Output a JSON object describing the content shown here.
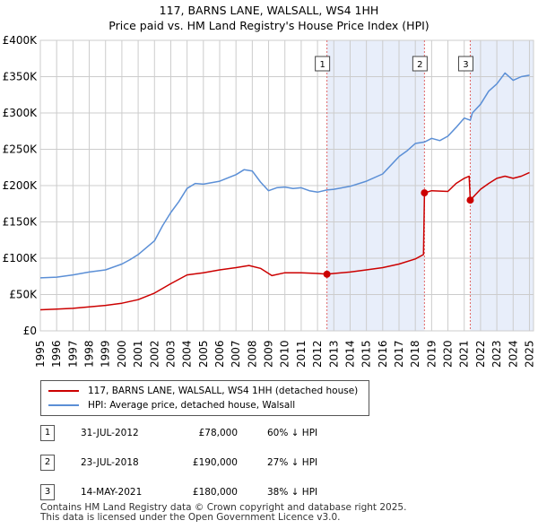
{
  "title": {
    "line1": "117, BARNS LANE, WALSALL, WS4 1HH",
    "line2": "Price paid vs. HM Land Registry's House Price Index (HPI)"
  },
  "chart_data": {
    "type": "line",
    "x_range": [
      1995,
      2025.25
    ],
    "ylim": [
      0,
      400000
    ],
    "y_ticks": [
      0,
      50000,
      100000,
      150000,
      200000,
      250000,
      300000,
      350000,
      400000
    ],
    "y_tick_labels": [
      "£0",
      "£50K",
      "£100K",
      "£150K",
      "£200K",
      "£250K",
      "£300K",
      "£350K",
      "£400K"
    ],
    "x_ticks": [
      1995,
      1996,
      1997,
      1998,
      1999,
      2000,
      2001,
      2002,
      2003,
      2004,
      2005,
      2006,
      2007,
      2008,
      2009,
      2010,
      2011,
      2012,
      2013,
      2014,
      2015,
      2016,
      2017,
      2018,
      2019,
      2020,
      2021,
      2022,
      2023,
      2024,
      2025
    ],
    "x_tick_labels": [
      "1995",
      "1996",
      "1997",
      "1998",
      "1999",
      "2000",
      "2001",
      "2002",
      "2003",
      "2004",
      "2005",
      "2006",
      "2007",
      "2008",
      "2009",
      "2010",
      "2011",
      "2012",
      "2013",
      "2014",
      "2015",
      "2016",
      "2017",
      "2018",
      "2019",
      "2020",
      "2021",
      "2022",
      "2023",
      "2024",
      "2025"
    ],
    "grid": true,
    "shaded_ranges": [
      [
        2012.58,
        2018.56
      ],
      [
        2021.37,
        2025.25
      ]
    ],
    "series": [
      {
        "name": "117, BARNS LANE, WALSALL, WS4 1HH (detached house)",
        "color": "#cc0000",
        "x": [
          1995.0,
          1996.0,
          1997.0,
          1998.0,
          1999.0,
          2000.0,
          2001.0,
          2002.0,
          2003.0,
          2004.0,
          2005.0,
          2006.0,
          2007.0,
          2007.8,
          2008.5,
          2009.2,
          2010.0,
          2011.0,
          2012.0,
          2012.58,
          2013.0,
          2014.0,
          2015.0,
          2016.0,
          2017.0,
          2018.0,
          2018.5,
          2018.56,
          2019.0,
          2020.0,
          2020.5,
          2021.0,
          2021.3,
          2021.37,
          2022.0,
          2022.5,
          2023.0,
          2023.5,
          2024.0,
          2024.5,
          2025.0
        ],
        "values": [
          29000,
          30000,
          31000,
          33000,
          35000,
          38000,
          43000,
          52000,
          65000,
          77000,
          80000,
          84000,
          87000,
          90000,
          86000,
          76000,
          80000,
          80000,
          79000,
          78000,
          79000,
          81000,
          84000,
          87000,
          92000,
          99000,
          105000,
          190000,
          193000,
          192000,
          203000,
          210000,
          213000,
          180000,
          195000,
          203000,
          210000,
          213000,
          210000,
          213000,
          218000
        ]
      },
      {
        "name": "HPI: Average price, detached house, Walsall",
        "color": "#5b8fd6",
        "x": [
          1995.0,
          1996.0,
          1997.0,
          1998.0,
          1999.0,
          2000.0,
          2000.5,
          2001.0,
          2002.0,
          2002.5,
          2003.0,
          2003.5,
          2004.0,
          2004.5,
          2005.0,
          2006.0,
          2007.0,
          2007.5,
          2008.0,
          2008.5,
          2009.0,
          2009.5,
          2010.0,
          2010.5,
          2011.0,
          2011.5,
          2012.0,
          2012.58,
          2013.0,
          2014.0,
          2015.0,
          2016.0,
          2016.5,
          2017.0,
          2017.5,
          2018.0,
          2018.56,
          2019.0,
          2019.5,
          2020.0,
          2020.5,
          2021.0,
          2021.37,
          2021.5,
          2022.0,
          2022.5,
          2023.0,
          2023.5,
          2024.0,
          2024.5,
          2025.0
        ],
        "values": [
          73000,
          74000,
          77000,
          81000,
          84000,
          92000,
          98000,
          105000,
          124000,
          145000,
          163000,
          178000,
          196000,
          203000,
          202000,
          206000,
          215000,
          222000,
          220000,
          205000,
          193000,
          197000,
          198000,
          196000,
          197000,
          193000,
          191000,
          194000,
          195000,
          199000,
          206000,
          216000,
          228000,
          240000,
          248000,
          258000,
          260000,
          265000,
          262000,
          268000,
          280000,
          293000,
          290000,
          300000,
          312000,
          330000,
          340000,
          355000,
          345000,
          350000,
          352000
        ]
      }
    ],
    "annotations": [
      {
        "label": "1",
        "x": 2012.58,
        "value": 78000,
        "date": "31-JUL-2012",
        "price": "£78,000",
        "hpi_diff": "60% ↓ HPI"
      },
      {
        "label": "2",
        "x": 2018.56,
        "value": 190000,
        "date": "23-JUL-2018",
        "price": "£190,000",
        "hpi_diff": "27% ↓ HPI"
      },
      {
        "label": "3",
        "x": 2021.37,
        "value": 180000,
        "date": "14-MAY-2021",
        "price": "£180,000",
        "hpi_diff": "38% ↓ HPI"
      }
    ]
  },
  "legend": {
    "items": [
      {
        "label": "117, BARNS LANE, WALSALL, WS4 1HH (detached house)",
        "color": "#cc0000"
      },
      {
        "label": "HPI: Average price, detached house, Walsall",
        "color": "#5b8fd6"
      }
    ]
  },
  "footer": {
    "line1": "Contains HM Land Registry data © Crown copyright and database right 2025.",
    "line2": "This data is licensed under the Open Government Licence v3.0."
  }
}
